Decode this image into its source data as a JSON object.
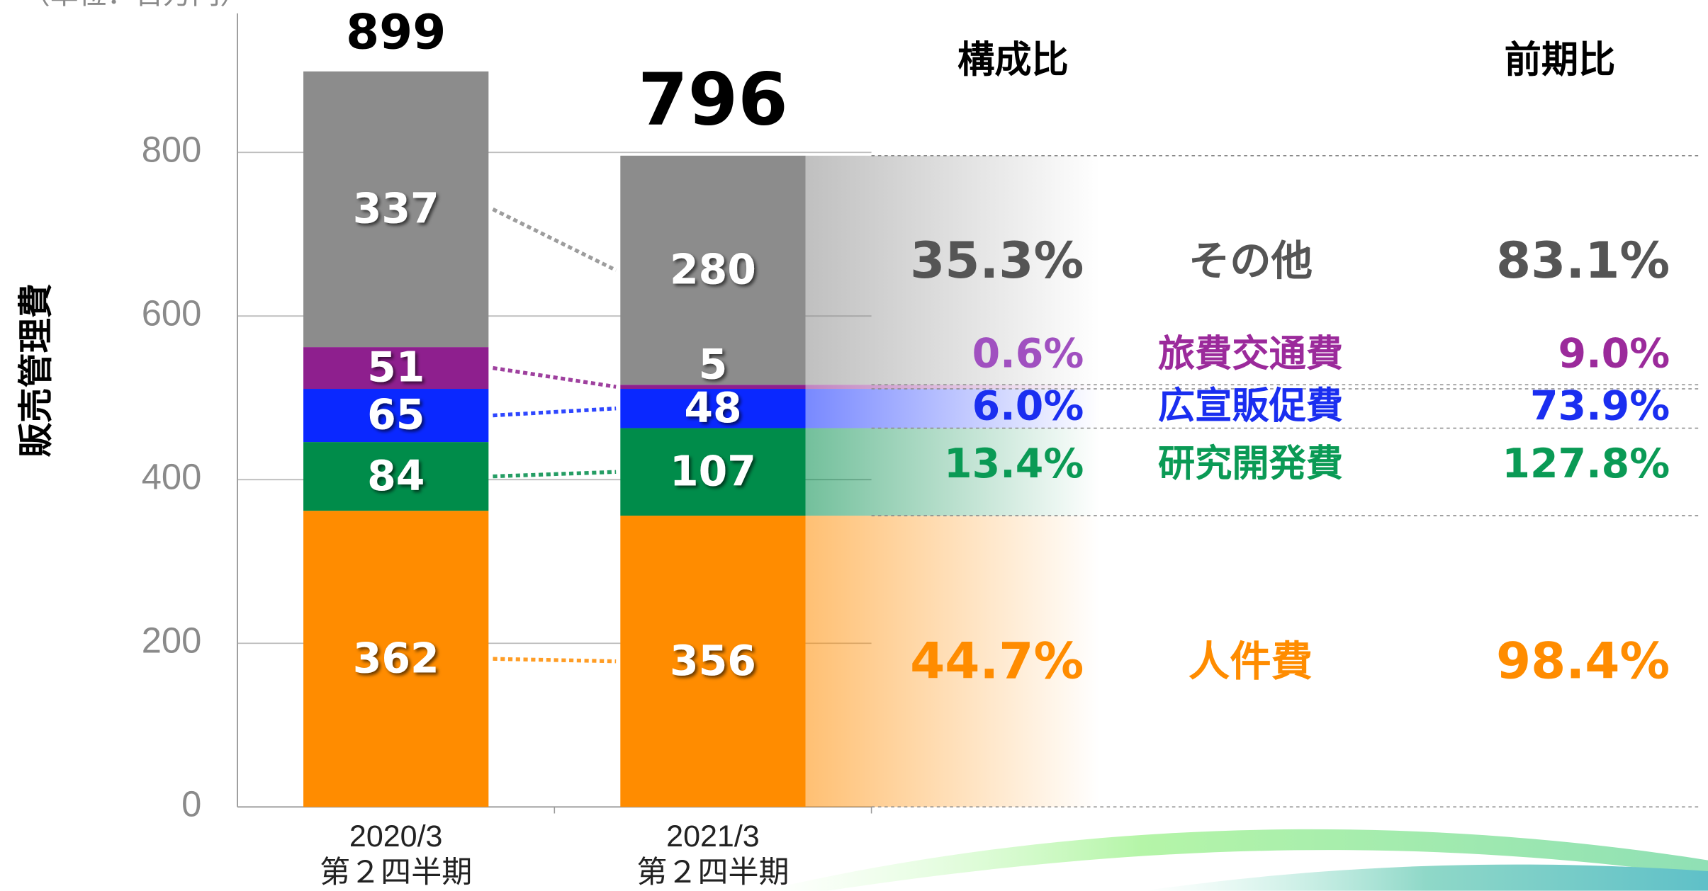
{
  "chart_data": {
    "type": "stacked_bar",
    "unit_note": "（単位：百万円）",
    "y_label": "販売管理費",
    "categories": [
      [
        "2020/3",
        "第２四半期"
      ],
      [
        "2021/3",
        "第２四半期"
      ]
    ],
    "series": [
      {
        "name": "人件費",
        "color": "#ff8c00",
        "values": [
          362,
          356
        ]
      },
      {
        "name": "研究開発費",
        "color": "#008c4a",
        "values": [
          84,
          107
        ]
      },
      {
        "name": "広宣販促費",
        "color": "#0a28ff",
        "values": [
          65,
          48
        ]
      },
      {
        "name": "旅費交通費",
        "color": "#8e1f8e",
        "values": [
          51,
          5
        ]
      },
      {
        "name": "その他",
        "color": "#8c8c8c",
        "values": [
          337,
          280
        ]
      }
    ],
    "totals": [
      899,
      796
    ],
    "ylim": [
      0,
      970
    ],
    "yticks": [
      0,
      200,
      400,
      600,
      800
    ],
    "grid": true,
    "table": {
      "headers": [
        "構成比",
        "前期比"
      ],
      "share": [
        "44.7%",
        "13.4%",
        "6.0%",
        "0.6%",
        "35.3%"
      ],
      "yoy": [
        "98.4%",
        "127.8%",
        "73.9%",
        "9.0%",
        "83.1%"
      ]
    }
  }
}
